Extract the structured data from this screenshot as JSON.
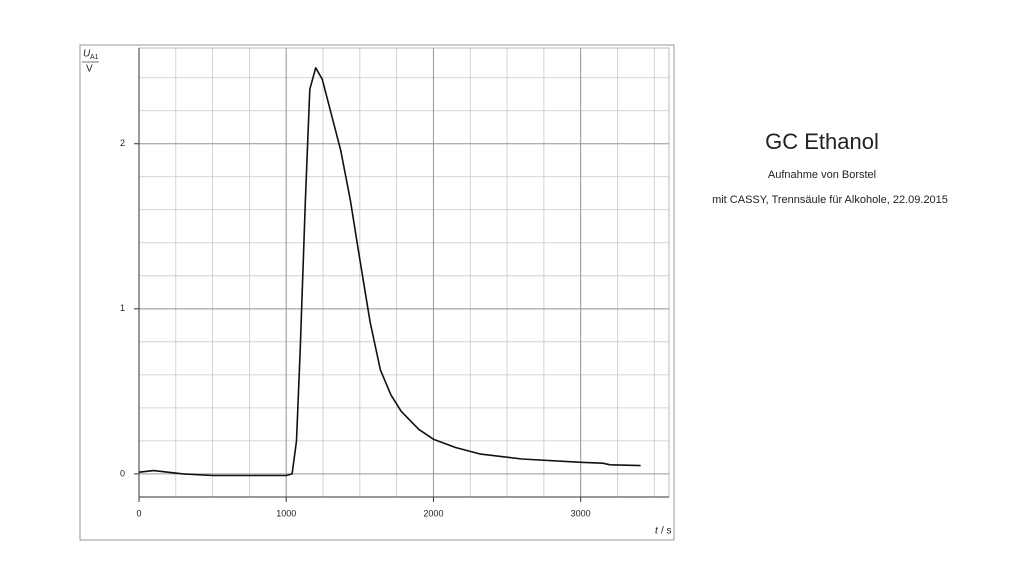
{
  "chart_data": {
    "type": "line",
    "title": "GC Ethanol",
    "subtitle": "Aufnahme von Borstel",
    "caption": "mit CASSY, Trennsäule für Alkohole, 22.09.2015",
    "y_label": {
      "symbol": "U",
      "subscript": "A1",
      "unit": "V"
    },
    "x_label": {
      "symbol": "t",
      "unit": "/ s"
    },
    "xlim": [
      0,
      3600
    ],
    "xticks": [
      0,
      1000,
      2000,
      3000
    ],
    "ylim": [
      -0.14,
      2.58
    ],
    "yticks": [
      0,
      1,
      2
    ],
    "grid": true,
    "series": [
      {
        "name": "U_A1",
        "color": "#111111",
        "x": [
          0,
          100,
          300,
          500,
          700,
          1000,
          1040,
          1070,
          1095,
          1130,
          1160,
          1200,
          1245,
          1300,
          1370,
          1435,
          1500,
          1570,
          1640,
          1710,
          1780,
          1900,
          2000,
          2150,
          2320,
          2600,
          3000,
          3150,
          3200,
          3408
        ],
        "values": [
          0.01,
          0.02,
          0.0,
          -0.01,
          -0.01,
          -0.01,
          0.0,
          0.2,
          0.75,
          1.66,
          2.33,
          2.46,
          2.39,
          2.2,
          1.96,
          1.66,
          1.3,
          0.92,
          0.63,
          0.48,
          0.38,
          0.27,
          0.21,
          0.16,
          0.12,
          0.09,
          0.07,
          0.065,
          0.055,
          0.05
        ]
      }
    ]
  }
}
